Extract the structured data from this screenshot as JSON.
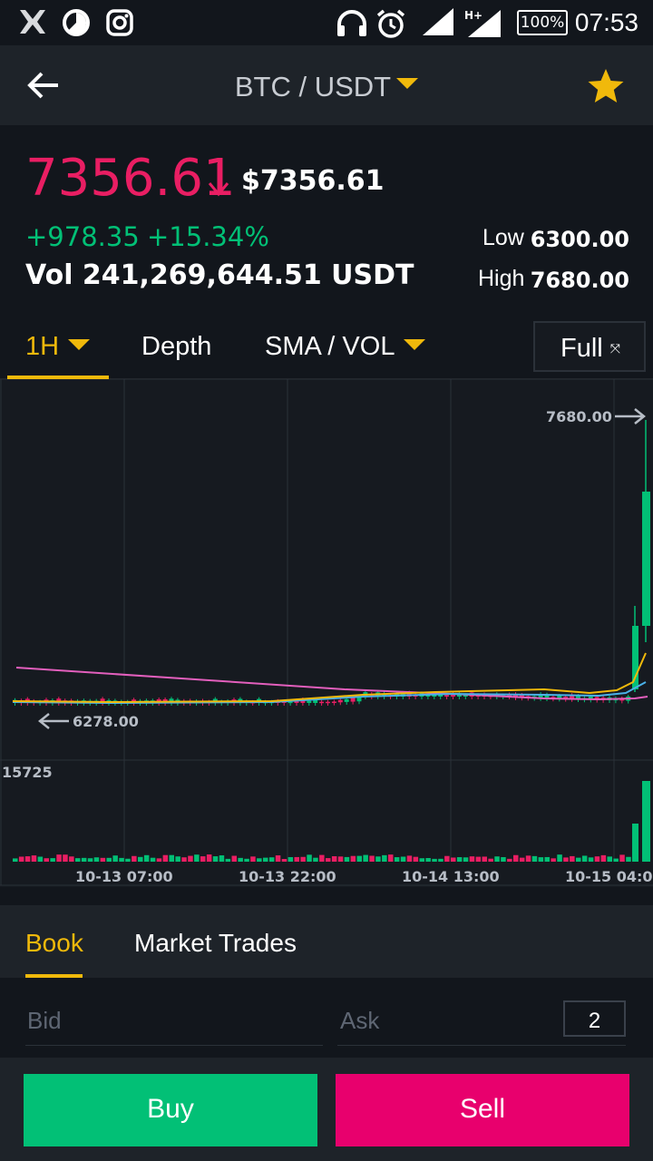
{
  "status_bar": {
    "time": "07:53",
    "battery": "100%",
    "network": "H+",
    "icons": [
      "app-logo-icon",
      "pie-chart-icon",
      "instagram-icon",
      "headphones-icon",
      "alarm-icon",
      "signal-icon",
      "signal-h-plus-icon",
      "battery-icon"
    ]
  },
  "header": {
    "pair": "BTC / USDT",
    "back_icon": "arrow-left-icon",
    "favorite_icon": "star-icon"
  },
  "ticker": {
    "last_price": "7356.61",
    "usd_price": "$7356.61",
    "change": "+978.35",
    "change_pct": "+15.34%",
    "volume": "Vol 241,269,644.51 USDT",
    "low_label": "Low",
    "low_value": "6300.00",
    "high_label": "High",
    "high_value": "7680.00"
  },
  "chart_tabs": {
    "interval": "1H",
    "depth": "Depth",
    "indicators": "SMA / VOL",
    "full": "Full"
  },
  "chart_labels": {
    "high_marker": "7680.00",
    "low_marker": "6278.00",
    "vol_max": "15725",
    "x_ticks": [
      "10-13 07:00",
      "10-13 22:00",
      "10-14 13:00",
      "10-15 04:0"
    ]
  },
  "colors": {
    "up": "#02c076",
    "down": "#e91e63",
    "accent": "#f0b90b",
    "sma7": "#f0b90b",
    "sma25": "#4ab1e8",
    "sma99": "#e35fbd"
  },
  "book": {
    "tab_book": "Book",
    "tab_trades": "Market Trades",
    "bid_label": "Bid",
    "ask_label": "Ask",
    "depth_digits": "2"
  },
  "actions": {
    "buy": "Buy",
    "sell": "Sell"
  }
}
